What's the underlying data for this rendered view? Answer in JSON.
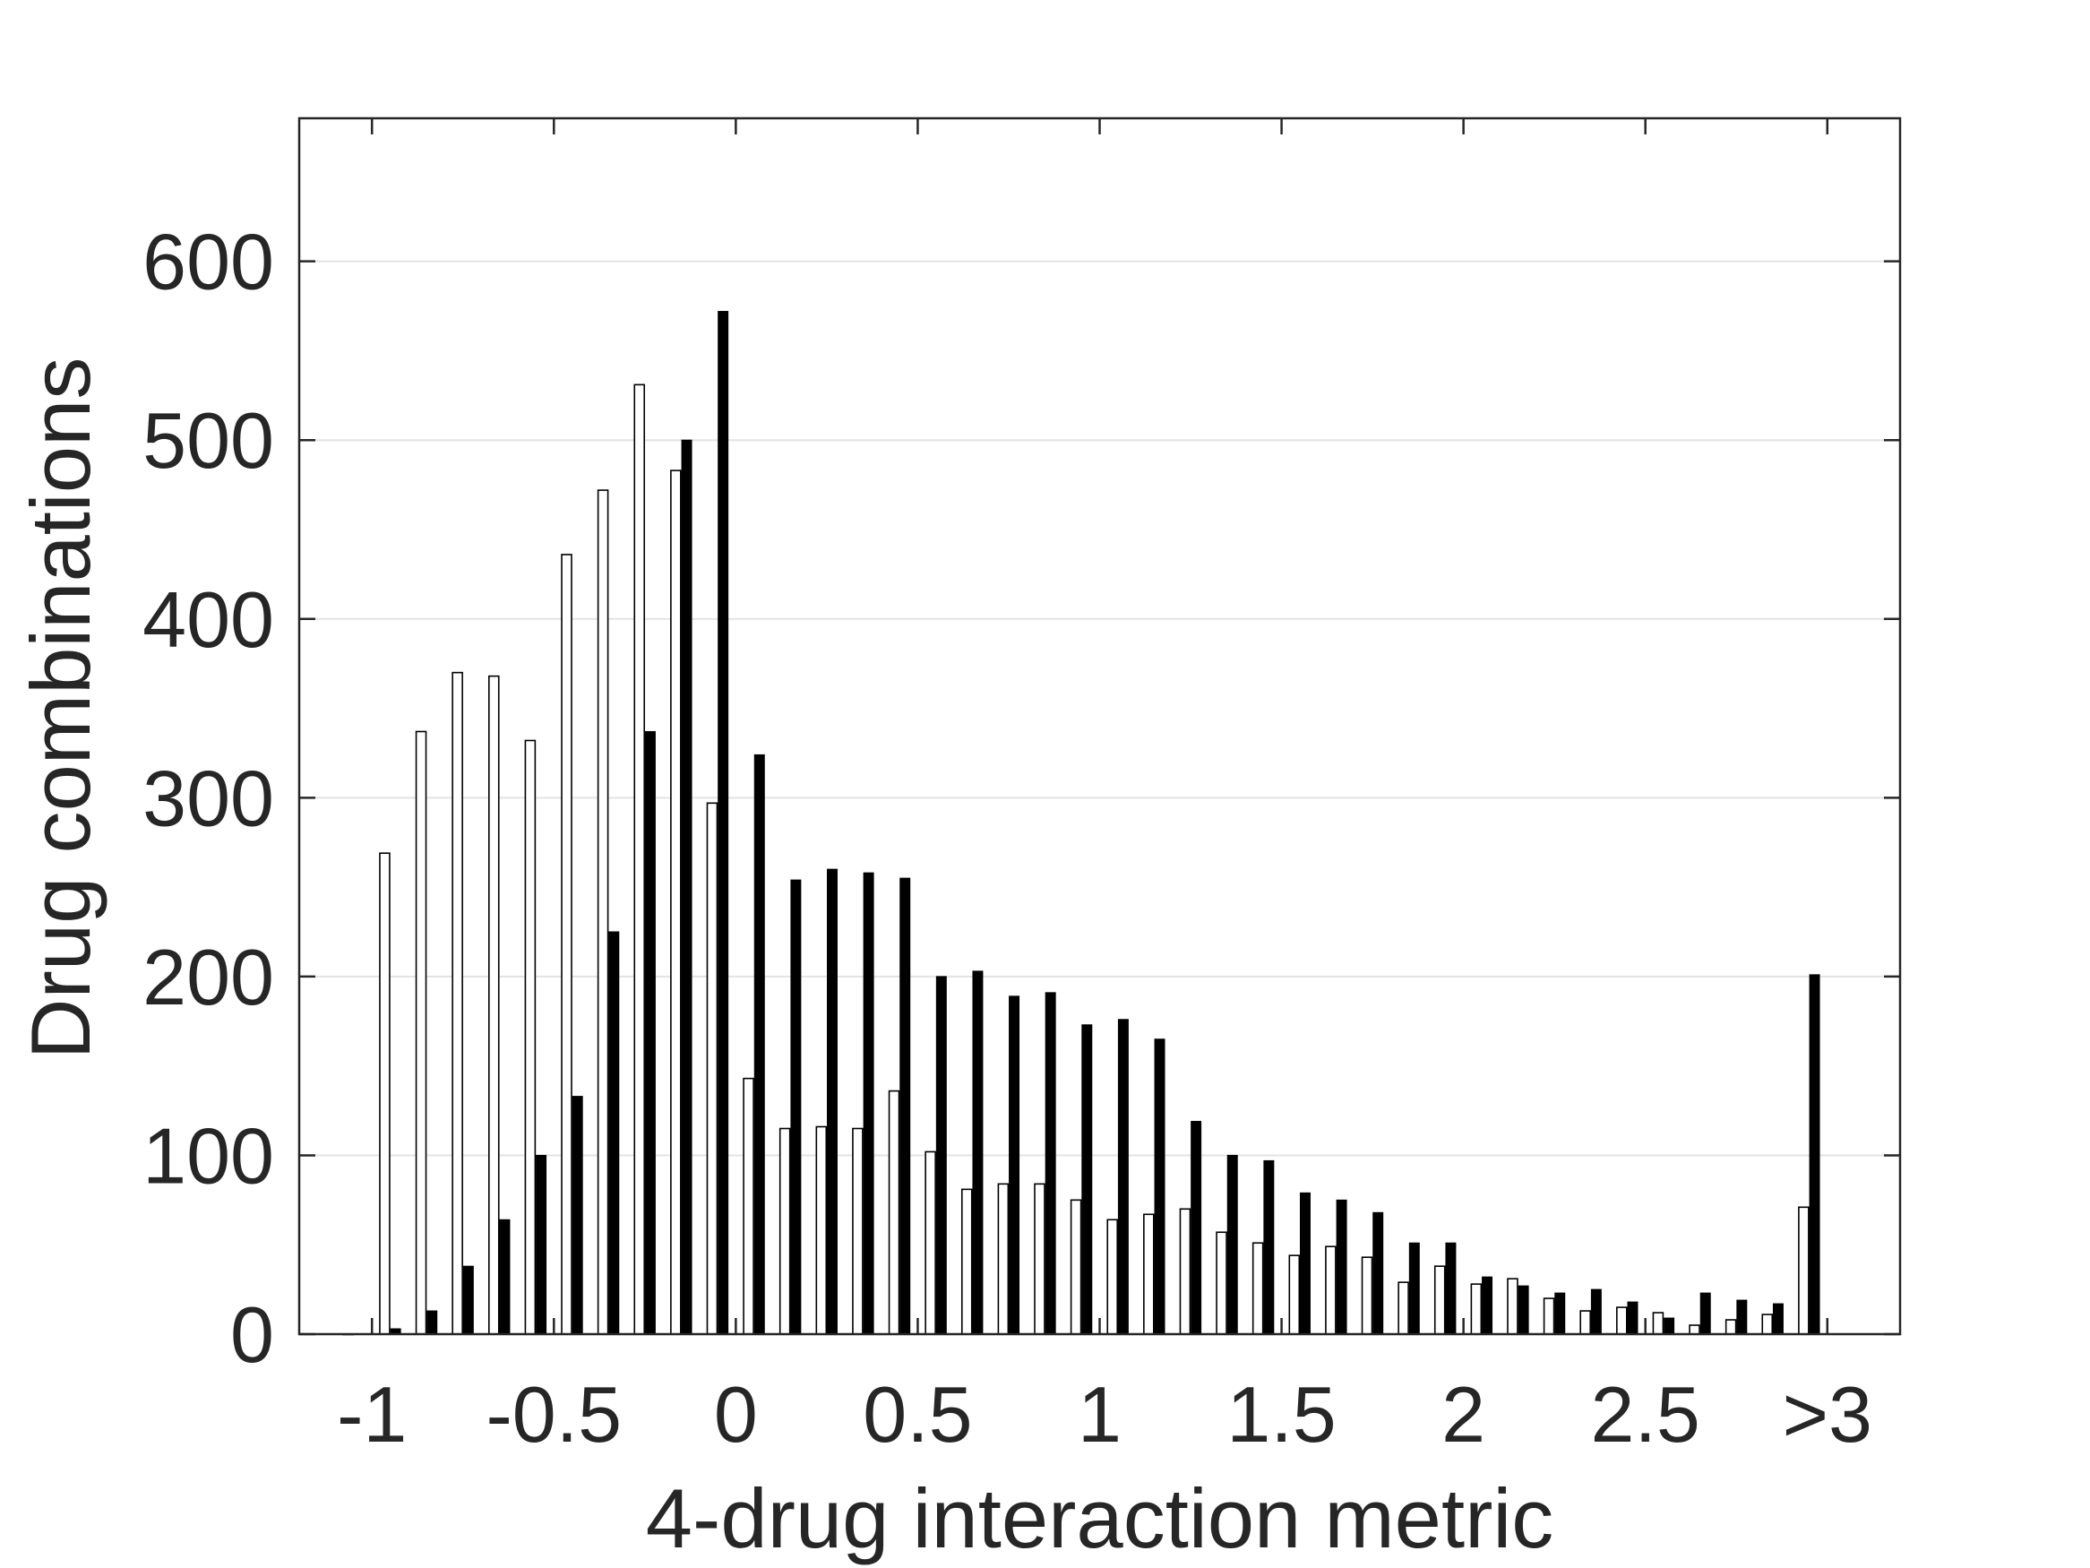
{
  "chart_data": {
    "type": "bar",
    "xlabel": "4-drug interaction metric",
    "ylabel": "Drug combinations",
    "ylim": [
      0,
      680
    ],
    "xlim": [
      -1.2,
      3.2
    ],
    "yticks": [
      0,
      100,
      200,
      300,
      400,
      500,
      600
    ],
    "xticks": [
      {
        "value": -1,
        "label": "-1"
      },
      {
        "value": -0.5,
        "label": "-0.5"
      },
      {
        "value": 0,
        "label": "0"
      },
      {
        "value": 0.5,
        "label": "0.5"
      },
      {
        "value": 1,
        "label": "1"
      },
      {
        "value": 1.5,
        "label": "1.5"
      },
      {
        "value": 2,
        "label": "2"
      },
      {
        "value": 2.5,
        "label": "2.5"
      },
      {
        "value": 3,
        "label": ">3"
      }
    ],
    "grid": {
      "y": true,
      "x": false
    },
    "bin_centers": [
      -1.05,
      -0.95,
      -0.85,
      -0.75,
      -0.65,
      -0.55,
      -0.45,
      -0.35,
      -0.25,
      -0.15,
      -0.05,
      0.05,
      0.15,
      0.25,
      0.35,
      0.45,
      0.55,
      0.65,
      0.75,
      0.85,
      0.95,
      1.05,
      1.15,
      1.25,
      1.35,
      1.45,
      1.55,
      1.65,
      1.75,
      1.85,
      1.95,
      2.05,
      2.15,
      2.25,
      2.35,
      2.45,
      2.55,
      2.65,
      2.75,
      2.85,
      2.95
    ],
    "series": [
      {
        "color": "#ffffff",
        "values": [
          0,
          269,
          337,
          370,
          368,
          332,
          436,
          472,
          531,
          483,
          297,
          143,
          115,
          116,
          115,
          136,
          102,
          81,
          84,
          84,
          75,
          64,
          67,
          70,
          57,
          51,
          44,
          49,
          43,
          29,
          38,
          28,
          31,
          20,
          13,
          15,
          12,
          5,
          8,
          11,
          71
        ]
      },
      {
        "color": "#000000",
        "values": [
          0,
          3,
          13,
          38,
          64,
          100,
          133,
          225,
          337,
          500,
          572,
          324,
          254,
          260,
          258,
          255,
          200,
          203,
          189,
          191,
          173,
          176,
          165,
          119,
          100,
          97,
          79,
          75,
          68,
          51,
          51,
          32,
          27,
          23,
          25,
          18,
          9,
          23,
          19,
          17,
          201
        ]
      }
    ]
  }
}
